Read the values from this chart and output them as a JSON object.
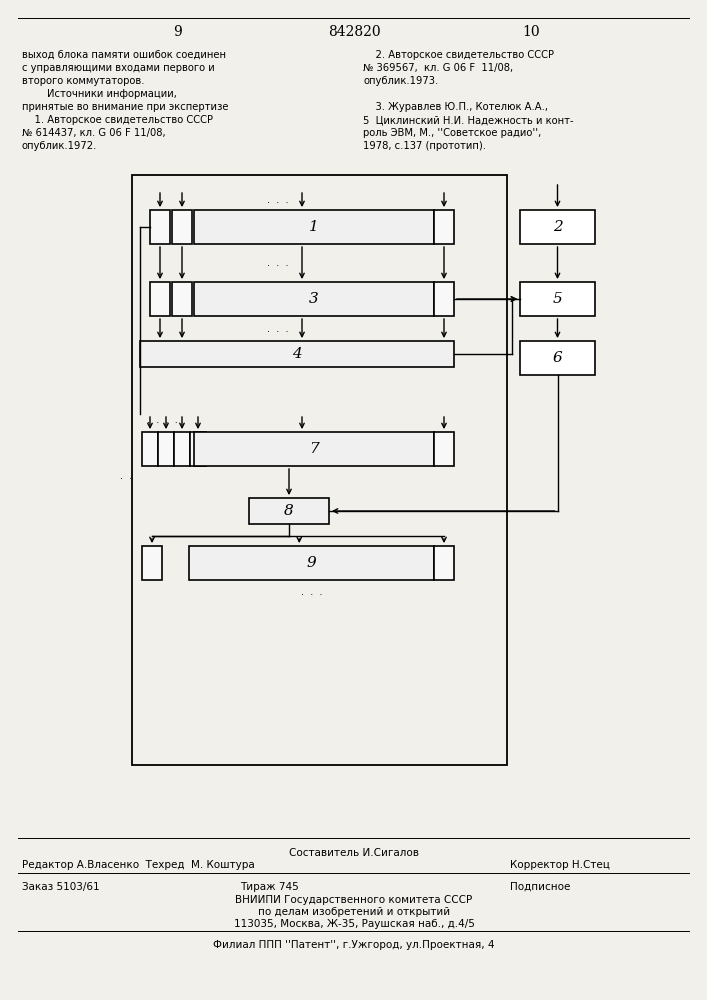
{
  "page_numbers": [
    "9",
    "842820",
    "10"
  ],
  "top_text_left": [
    "выход блока памяти ошибок соединен",
    "с управляющими входами первого и",
    "второго коммутаторов.",
    "        Источники информации,",
    "принятые во внимание при экспертизе",
    "    1. Авторское свидетельство СССР",
    "№ 614437, кл. G 06 F 11/08,",
    "опублик.1972."
  ],
  "top_text_right": [
    "    2. Авторское свидетельство СССР",
    "№ 369567,  кл. G 06 F  11/08,",
    "опублик.1973.",
    "",
    "    3. Журавлев Ю.П., Котелюк А.А.,",
    "5  Циклинский Н.И. Надежность и конт-",
    "роль ЭВМ, М., ''Советское радио'',",
    "1978, с.137 (прототип)."
  ],
  "bottom_composer": "Составитель И.Сигалов",
  "bottom_editor": "Редактор А.Власенко  Техред  М. Коштура",
  "bottom_corrector": "Корректор Н.Стец",
  "bottom_order": "Заказ 5103/61",
  "bottom_tirazh": "Тираж 745",
  "bottom_podpisnoe": "Подписное",
  "bottom_vnipi": "ВНИИПИ Государственного комитета СССР",
  "bottom_po_delam": "по делам изобретений и открытий",
  "bottom_address": "113035, Москва, Ж-35, Раушская наб., д.4/5",
  "bottom_filial": "Филиал ППП ''Патент'', г.Ужгород, ул.Проектная, 4",
  "bg_color": "#f2f0eb"
}
